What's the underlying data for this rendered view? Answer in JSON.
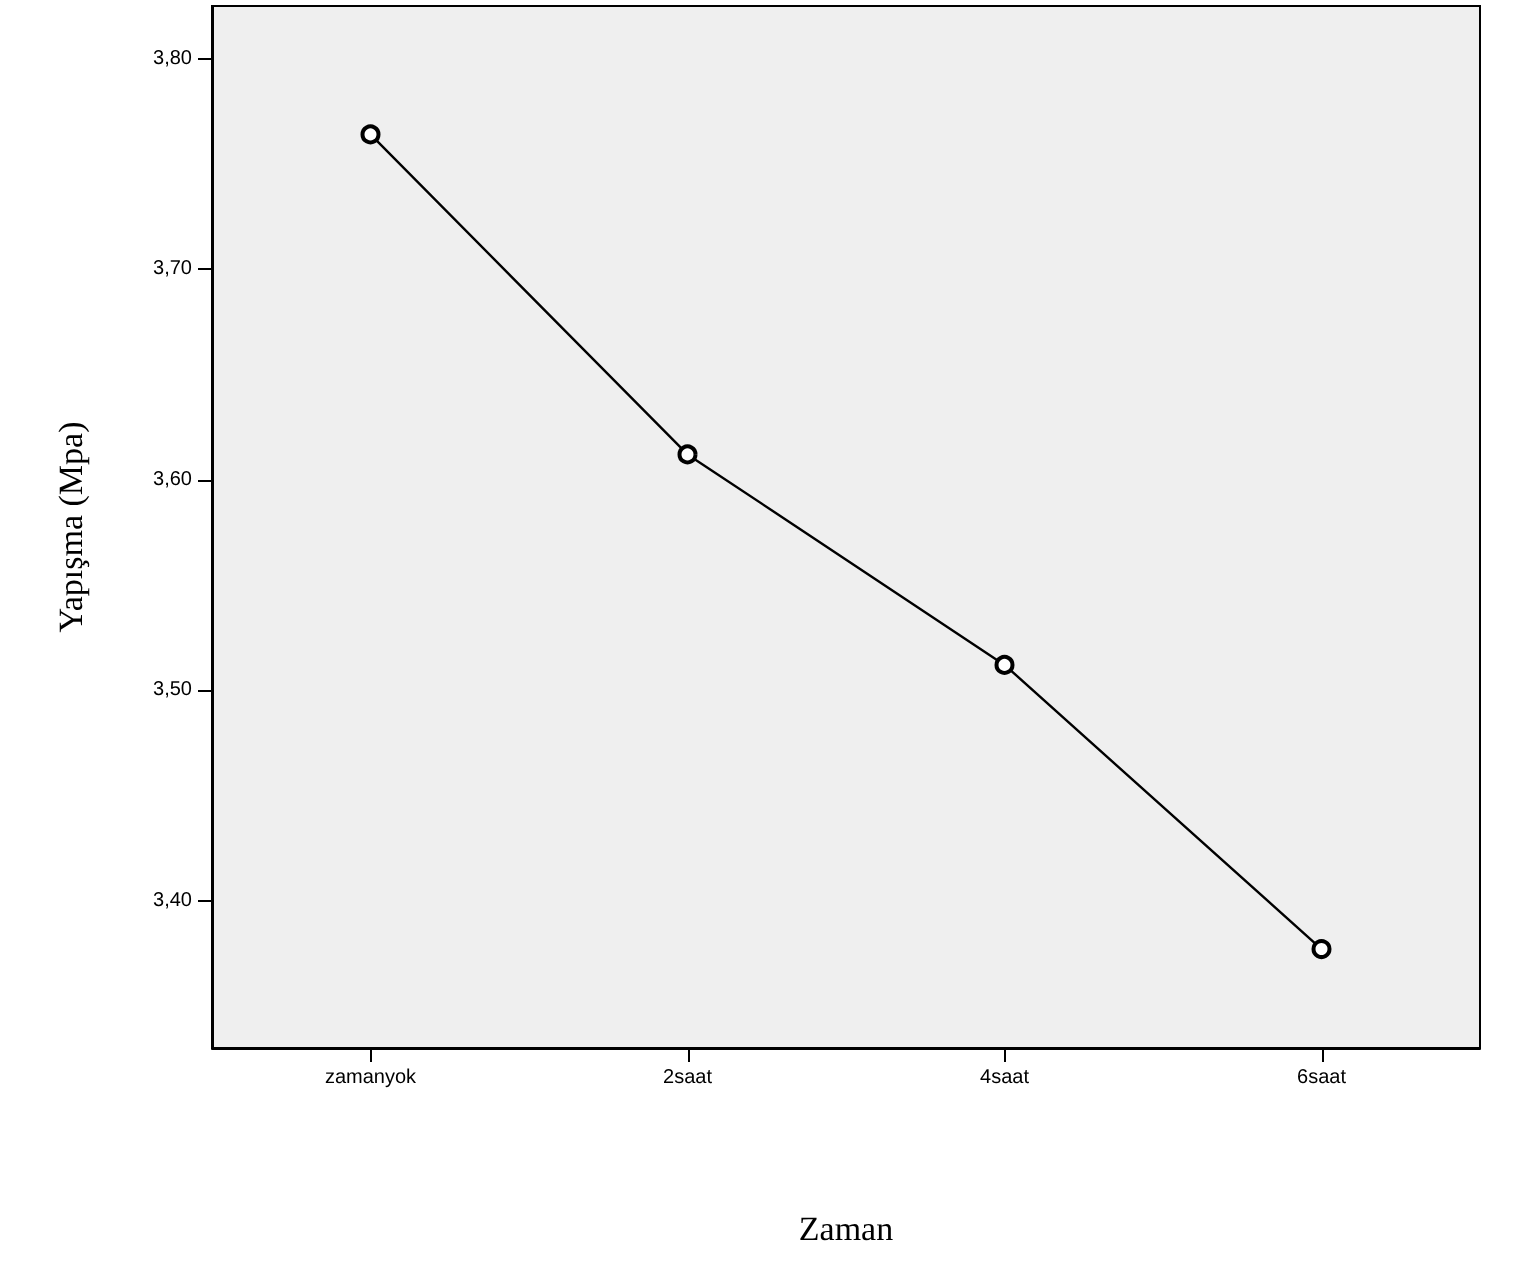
{
  "chart_data": {
    "type": "line",
    "xlabel": "Zaman",
    "ylabel": "Yapışma (Mpa)",
    "categories": [
      "zamanyok",
      "2saat",
      "4saat",
      "6saat"
    ],
    "series": [
      {
        "color": "#000000",
        "values": [
          3.764,
          3.612,
          3.512,
          3.377
        ]
      }
    ],
    "ylim": [
      3.33,
      3.825
    ],
    "yticks": [
      {
        "value": 3.4,
        "label": "3,40"
      },
      {
        "value": 3.5,
        "label": "3,50"
      },
      {
        "value": 3.6,
        "label": "3,60"
      },
      {
        "value": 3.7,
        "label": "3,70"
      },
      {
        "value": 3.8,
        "label": "3,80"
      }
    ],
    "grid": false,
    "marker": "circle",
    "line_style": "solid"
  }
}
